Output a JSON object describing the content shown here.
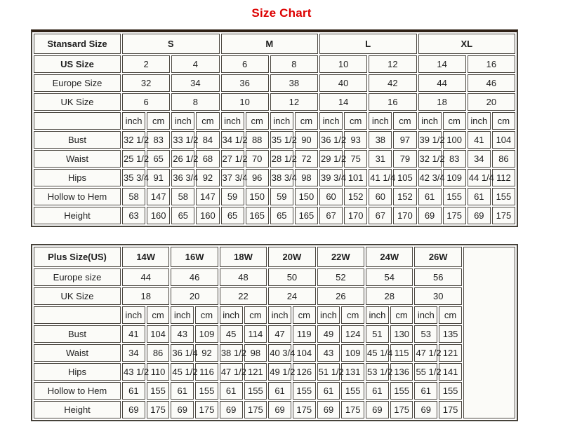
{
  "page_title": {
    "text": "Size Chart",
    "color": "#dd0000"
  },
  "chart_data": [
    {
      "type": "table",
      "table_name": "standard-size-table",
      "header_label": "Stansard Size",
      "size_groups": [
        "S",
        "M",
        "L",
        "XL"
      ],
      "size_rows": [
        {
          "label": "US Size",
          "bold": true,
          "values": [
            "2",
            "4",
            "6",
            "8",
            "10",
            "12",
            "14",
            "16"
          ]
        },
        {
          "label": "Europe Size",
          "bold": false,
          "values": [
            "32",
            "34",
            "36",
            "38",
            "40",
            "42",
            "44",
            "46"
          ]
        },
        {
          "label": "UK Size",
          "bold": false,
          "values": [
            "6",
            "8",
            "10",
            "12",
            "14",
            "16",
            "18",
            "20"
          ]
        }
      ],
      "unit_labels": [
        "inch",
        "cm"
      ],
      "measurement_rows": [
        {
          "label": "Bust",
          "values": [
            "32 1/2",
            "83",
            "33 1/2",
            "84",
            "34 1/2",
            "88",
            "35 1/2",
            "90",
            "36 1/2",
            "93",
            "38",
            "97",
            "39 1/2",
            "100",
            "41",
            "104"
          ]
        },
        {
          "label": "Waist",
          "values": [
            "25 1/2",
            "65",
            "26 1/2",
            "68",
            "27 1/2",
            "70",
            "28 1/2",
            "72",
            "29 1/2",
            "75",
            "31",
            "79",
            "32 1/2",
            "83",
            "34",
            "86"
          ]
        },
        {
          "label": "Hips",
          "values": [
            "35 3/4",
            "91",
            "36 3/4",
            "92",
            "37 3/4",
            "96",
            "38 3/4",
            "98",
            "39 3/4",
            "101",
            "41 1/4",
            "105",
            "42 3/4",
            "109",
            "44 1/4",
            "112"
          ]
        },
        {
          "label": "Hollow to Hem",
          "values": [
            "58",
            "147",
            "58",
            "147",
            "59",
            "150",
            "59",
            "150",
            "60",
            "152",
            "60",
            "152",
            "61",
            "155",
            "61",
            "155"
          ]
        },
        {
          "label": "Height",
          "values": [
            "63",
            "160",
            "65",
            "160",
            "65",
            "165",
            "65",
            "165",
            "67",
            "170",
            "67",
            "170",
            "69",
            "175",
            "69",
            "175"
          ]
        }
      ],
      "trailing_empty_column": false
    },
    {
      "type": "table",
      "table_name": "plus-size-table",
      "header_label": "Plus Size(US)",
      "size_groups": [
        "14W",
        "16W",
        "18W",
        "20W",
        "22W",
        "24W",
        "26W"
      ],
      "size_rows": [
        {
          "label": "Europe size",
          "bold": false,
          "values": [
            "44",
            "46",
            "48",
            "50",
            "52",
            "54",
            "56"
          ]
        },
        {
          "label": "UK Size",
          "bold": false,
          "values": [
            "18",
            "20",
            "22",
            "24",
            "26",
            "28",
            "30"
          ]
        }
      ],
      "unit_labels": [
        "inch",
        "cm"
      ],
      "measurement_rows": [
        {
          "label": "Bust",
          "values": [
            "41",
            "104",
            "43",
            "109",
            "45",
            "114",
            "47",
            "119",
            "49",
            "124",
            "51",
            "130",
            "53",
            "135"
          ]
        },
        {
          "label": "Waist",
          "values": [
            "34",
            "86",
            "36 1/4",
            "92",
            "38 1/2",
            "98",
            "40 3/4",
            "104",
            "43",
            "109",
            "45 1/4",
            "115",
            "47 1/2",
            "121"
          ]
        },
        {
          "label": "Hips",
          "values": [
            "43 1/2",
            "110",
            "45 1/2",
            "116",
            "47 1/2",
            "121",
            "49 1/2",
            "126",
            "51 1/2",
            "131",
            "53 1/2",
            "136",
            "55 1/2",
            "141"
          ]
        },
        {
          "label": "Hollow to Hem",
          "values": [
            "61",
            "155",
            "61",
            "155",
            "61",
            "155",
            "61",
            "155",
            "61",
            "155",
            "61",
            "155",
            "61",
            "155"
          ]
        },
        {
          "label": "Height",
          "values": [
            "69",
            "175",
            "69",
            "175",
            "69",
            "175",
            "69",
            "175",
            "69",
            "175",
            "69",
            "175",
            "69",
            "175"
          ]
        }
      ],
      "trailing_empty_column": true
    }
  ]
}
